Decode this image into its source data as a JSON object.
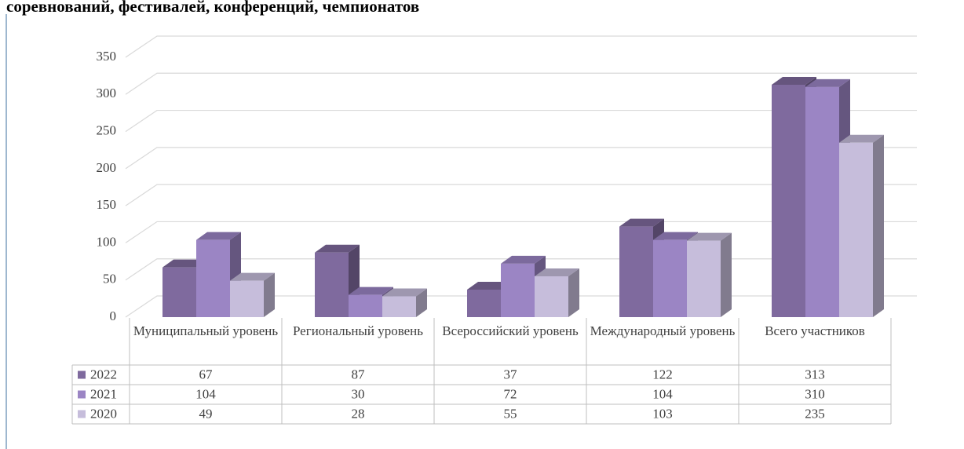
{
  "chart_data": {
    "type": "bar3d",
    "title": "соревнований, фестивалей, конференций, чемпионатов",
    "categories": [
      "Муниципальный уровень",
      "Региональный уровень",
      "Всероссийский уровень",
      "Международный уровень",
      "Всего участников"
    ],
    "series": [
      {
        "name": "2022",
        "color": "#7f6a9e",
        "values": [
          67,
          87,
          37,
          122,
          313
        ]
      },
      {
        "name": "2021",
        "color": "#9b85c4",
        "values": [
          104,
          30,
          72,
          104,
          310
        ]
      },
      {
        "name": "2020",
        "color": "#c6bddb",
        "values": [
          49,
          28,
          55,
          103,
          235
        ]
      }
    ],
    "ylim": [
      0,
      350
    ],
    "yticks": [
      0,
      50,
      100,
      150,
      200,
      250,
      300,
      350
    ],
    "grid": true
  }
}
